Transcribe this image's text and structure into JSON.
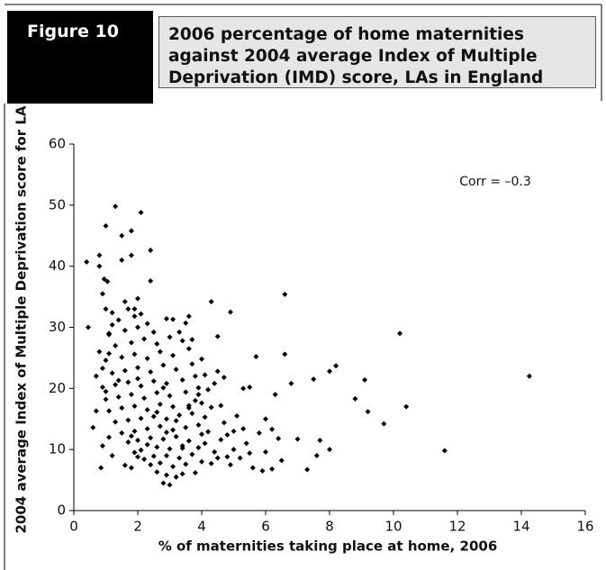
{
  "figure_label": "Figure 10",
  "chart_data": {
    "type": "scatter",
    "title": "2006 percentage of home maternities against 2004 average Index of Multiple Deprivation (IMD) score, LAs in England",
    "x_label": "% of maternities taking place at home, 2006",
    "y_label": "2004 average Index of Multiple Deprivation score for LA",
    "annotation": "Corr = –0.3",
    "color": "#000000",
    "xlim": [
      0,
      16
    ],
    "xticks": [
      0,
      2,
      4,
      6,
      8,
      10,
      12,
      14,
      16
    ],
    "ylim": [
      0,
      60
    ],
    "yticks": [
      0,
      10,
      20,
      30,
      40,
      50,
      60
    ],
    "x": [
      14.25,
      11.6,
      10.4,
      10.2,
      9.7,
      9.1,
      9.2,
      8.8,
      8.2,
      8,
      8,
      7.7,
      7.6,
      7.5,
      7.3,
      7,
      6.8,
      6.6,
      6.6,
      6.5,
      6.3,
      6.2,
      6,
      6,
      5.7,
      5.8,
      5.9,
      5.5,
      5.3,
      5.3,
      5.2,
      5,
      4.9,
      4.8,
      4.5,
      4.5,
      4.3,
      4.2,
      4.6,
      4.3,
      4.7,
      0.4,
      0.45,
      0.6,
      0.7,
      0.8,
      0.85,
      0.8,
      0.9,
      0.95,
      1.0,
      1.05,
      1.3,
      1.5,
      2.1,
      1.8,
      2.4,
      1.8,
      1.5,
      2.4,
      1.6,
      2.0,
      1.9,
      2.9,
      3.1,
      3.6,
      3.5,
      1.2,
      1.0,
      1.1,
      2.8,
      3.0,
      2.9,
      3.2,
      2.6,
      3.4,
      3.8,
      2.4,
      2.7,
      3.1,
      3.5,
      2.2,
      2.5,
      2.9,
      3.3,
      3.7,
      4.0,
      1.9,
      2.1,
      2.6,
      3.0,
      3.4,
      3.9,
      4.4,
      1.7,
      2.0,
      2.4,
      2.8,
      3.2,
      3.6,
      4.0,
      1.5,
      1.9,
      2.3,
      2.7,
      3.1,
      3.5,
      3.9,
      1.3,
      1.7,
      2.1,
      2.5,
      2.9,
      3.3,
      3.7,
      4.1,
      1.1,
      1.5,
      1.9,
      2.3,
      2.7,
      3.1,
      3.6,
      4.0,
      1.0,
      1.4,
      1.8,
      2.2,
      2.6,
      3.0,
      3.5,
      3.9,
      0.9,
      1.3,
      1.7,
      2.1,
      2.5,
      2.9,
      3.4,
      3.8,
      1.2,
      1.6,
      2.0,
      2.4,
      2.8,
      3.2,
      3.7,
      1.0,
      1.5,
      1.9,
      2.3,
      2.7,
      3.1,
      3.6,
      1.3,
      1.8,
      2.2,
      2.6,
      3.0,
      3.4,
      1.1,
      1.6,
      2.0,
      2.5,
      1.4,
      1.9,
      2.3,
      1.2,
      1.7,
      2.1,
      0.8,
      0.9,
      1.0,
      0.7,
      1.1,
      0.9,
      1.2,
      1.6,
      1.8,
      2.0,
      4.2,
      4.3,
      4.1,
      4.0,
      3.9,
      4.6,
      4.8,
      5.0,
      5.1,
      5.4,
      5.6,
      6.2,
      6.4,
      4.4,
      4.7,
      3.8,
      3.6,
      4.1,
      4.5,
      4.9,
      5.5,
      3.3,
      3.7,
      2.8,
      1.4,
      1.1,
      2.0,
      2.6,
      3.2,
      3.4,
      2.9,
      2.3,
      1.8
    ],
    "values": [
      22,
      9.8,
      17,
      29,
      14.2,
      21.4,
      16.2,
      18.3,
      23.7,
      22.8,
      10,
      11.5,
      9,
      21.5,
      6.7,
      11.7,
      20.8,
      35.4,
      25.6,
      8.2,
      19,
      13.3,
      9.6,
      15,
      25.2,
      12.7,
      6.5,
      20.2,
      20,
      13.4,
      8.6,
      13,
      32.5,
      8.8,
      28.5,
      22.8,
      34.2,
      12.9,
      11.6,
      7.7,
      14.4,
      40.7,
      30,
      13.6,
      22,
      41.8,
      7,
      40,
      35.5,
      37.9,
      46.6,
      37.5,
      49.8,
      45,
      48.8,
      45.8,
      42.6,
      41.8,
      41,
      37.6,
      34.2,
      34.7,
      33,
      31.4,
      31.3,
      31.8,
      30.7,
      30.4,
      33,
      28.8,
      4.5,
      4.2,
      5.8,
      5.5,
      6.3,
      6.0,
      6.2,
      7.5,
      7.8,
      7.2,
      7.6,
      8.4,
      8.9,
      9.0,
      8.6,
      9.2,
      8.0,
      9.5,
      9.9,
      10.4,
      10.1,
      10.6,
      10.3,
      9.6,
      11.2,
      11.5,
      11.9,
      11.7,
      12.1,
      11.4,
      12.5,
      12.7,
      13.0,
      13.4,
      13.8,
      13.2,
      13.6,
      14.0,
      14.5,
      14.8,
      15.1,
      15.4,
      15.0,
      15.6,
      15.9,
      15.3,
      16.3,
      16.8,
      17.1,
      16.5,
      17.4,
      17.0,
      17.2,
      17.6,
      18.2,
      18.6,
      19.0,
      18.4,
      19.3,
      18.8,
      19.4,
      19.0,
      20.2,
      20.6,
      21.0,
      20.4,
      21.2,
      20.8,
      21.4,
      22.0,
      22.5,
      22.9,
      23.4,
      22.7,
      23.8,
      23.1,
      24.0,
      24.6,
      25.1,
      25.6,
      24.9,
      26.0,
      25.4,
      26.5,
      27.0,
      27.5,
      28.1,
      27.3,
      28.4,
      27.8,
      29.0,
      29.5,
      30.0,
      29.2,
      31.2,
      31.8,
      30.6,
      32.4,
      33.0,
      32.2,
      26.0,
      23.3,
      19.5,
      16.3,
      12.0,
      10.6,
      9.0,
      7.4,
      7.0,
      8.8,
      19.8,
      16.9,
      22.2,
      24.8,
      20.1,
      17.2,
      12.4,
      10.0,
      15.5,
      11.0,
      7.0,
      6.8,
      11.8,
      20.8,
      21.8,
      18.0,
      16.8,
      11.0,
      8.6,
      7.5,
      9.4,
      29.2,
      28.0,
      20.1,
      21.3,
      25.7,
      21.6,
      16.1,
      14.7,
      10.2,
      12.8,
      10.8,
      12.2
    ]
  }
}
